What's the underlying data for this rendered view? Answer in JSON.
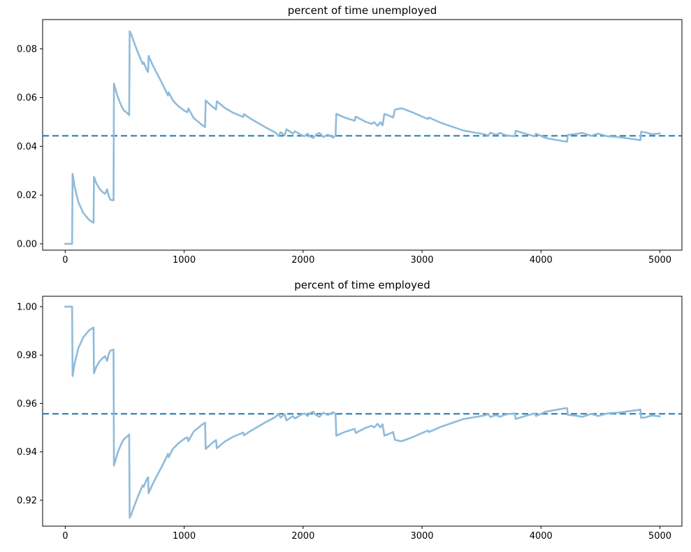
{
  "figure": {
    "background": "#ffffff",
    "series_color": "#8fbbda",
    "dashed_color": "#1f77b4",
    "axis_color": "#000000"
  },
  "chart_data": [
    {
      "type": "line",
      "title": "percent of time unemployed",
      "xlabel": "",
      "ylabel": "",
      "grid": false,
      "legend": "none",
      "xlim": [
        -190,
        5185
      ],
      "ylim": [
        -0.0026,
        0.092
      ],
      "xtick_values": [
        0,
        1000,
        2000,
        3000,
        4000,
        5000
      ],
      "xtick_labels": [
        "0",
        "1000",
        "2000",
        "3000",
        "4000",
        "5000"
      ],
      "ytick_values": [
        0.0,
        0.02,
        0.04,
        0.06,
        0.08
      ],
      "ytick_labels": [
        "0.00",
        "0.02",
        "0.04",
        "0.06",
        "0.08"
      ],
      "hline": {
        "value": 0.0443,
        "style": "dashed"
      },
      "series": [
        {
          "x": [
            0,
            58,
            62,
            80,
            110,
            150,
            200,
            238,
            242,
            262,
            285,
            312,
            335,
            352,
            366,
            380,
            406,
            410,
            440,
            470,
            492,
            520,
            538,
            542,
            556,
            585,
            615,
            645,
            652,
            660,
            686,
            697,
            701,
            735,
            770,
            810,
            858,
            864,
            870,
            905,
            950,
            1005,
            1028,
            1035,
            1080,
            1144,
            1176,
            1181,
            1230,
            1268,
            1274,
            1340,
            1410,
            1470,
            1497,
            1503,
            1560,
            1610,
            1684,
            1730,
            1770,
            1793,
            1810,
            1845,
            1860,
            1915,
            1932,
            1978,
            2010,
            2038,
            2055,
            2085,
            2108,
            2138,
            2170,
            2208,
            2252,
            2273,
            2279,
            2360,
            2433,
            2442,
            2520,
            2575,
            2598,
            2627,
            2650,
            2668,
            2684,
            2740,
            2757,
            2772,
            2800,
            2830,
            2917,
            3000,
            3050,
            3058,
            3150,
            3268,
            3345,
            3435,
            3520,
            3558,
            3574,
            3620,
            3658,
            3688,
            3720,
            3780,
            3788,
            3860,
            3948,
            3958,
            4040,
            4120,
            4190,
            4220,
            4226,
            4285,
            4350,
            4420,
            4480,
            4560,
            4650,
            4754,
            4800,
            4836,
            4842,
            4880,
            4930,
            5000
          ],
          "y": [
            0.0,
            0.0,
            0.0287,
            0.0232,
            0.0172,
            0.0128,
            0.0098,
            0.0086,
            0.0275,
            0.0248,
            0.0228,
            0.0213,
            0.0205,
            0.0224,
            0.0196,
            0.0181,
            0.0178,
            0.0657,
            0.0605,
            0.0568,
            0.0548,
            0.0537,
            0.0528,
            0.0872,
            0.0858,
            0.0818,
            0.078,
            0.0746,
            0.0738,
            0.0744,
            0.0713,
            0.0705,
            0.0771,
            0.0733,
            0.07,
            0.0663,
            0.0615,
            0.0608,
            0.0622,
            0.0588,
            0.0565,
            0.0545,
            0.054,
            0.0556,
            0.0516,
            0.049,
            0.0479,
            0.0588,
            0.0566,
            0.0551,
            0.0585,
            0.0558,
            0.0538,
            0.0526,
            0.052,
            0.0532,
            0.0513,
            0.0499,
            0.0478,
            0.0466,
            0.0455,
            0.0442,
            0.0458,
            0.0445,
            0.047,
            0.0452,
            0.0462,
            0.0448,
            0.0441,
            0.0452,
            0.0441,
            0.0434,
            0.0448,
            0.0455,
            0.0438,
            0.0448,
            0.0436,
            0.0444,
            0.0533,
            0.0516,
            0.0505,
            0.0522,
            0.0502,
            0.0492,
            0.0499,
            0.0484,
            0.0499,
            0.0486,
            0.0533,
            0.0522,
            0.0518,
            0.055,
            0.0554,
            0.0556,
            0.054,
            0.0522,
            0.0512,
            0.0518,
            0.0498,
            0.0478,
            0.0465,
            0.0457,
            0.045,
            0.0444,
            0.0456,
            0.0448,
            0.0455,
            0.0448,
            0.0444,
            0.0441,
            0.0464,
            0.0453,
            0.0441,
            0.0452,
            0.0434,
            0.0427,
            0.0421,
            0.0419,
            0.0447,
            0.045,
            0.0455,
            0.0443,
            0.0452,
            0.0441,
            0.0438,
            0.0431,
            0.0428,
            0.0425,
            0.046,
            0.0457,
            0.045,
            0.0453
          ]
        }
      ]
    },
    {
      "type": "line",
      "title": "percent of time employed",
      "xlabel": "",
      "ylabel": "",
      "grid": false,
      "legend": "none",
      "xlim": [
        -190,
        5185
      ],
      "ylim": [
        0.9093,
        1.0043
      ],
      "xtick_values": [
        0,
        1000,
        2000,
        3000,
        4000,
        5000
      ],
      "xtick_labels": [
        "0",
        "1000",
        "2000",
        "3000",
        "4000",
        "5000"
      ],
      "ytick_values": [
        0.92,
        0.94,
        0.96,
        0.98,
        1.0
      ],
      "ytick_labels": [
        "0.92",
        "0.94",
        "0.96",
        "0.98",
        "1.00"
      ],
      "hline": {
        "value": 0.9557,
        "style": "dashed"
      },
      "series": [
        {
          "x": [
            0,
            58,
            62,
            80,
            110,
            150,
            200,
            238,
            242,
            262,
            285,
            312,
            335,
            352,
            366,
            380,
            406,
            410,
            440,
            470,
            492,
            520,
            538,
            542,
            556,
            585,
            615,
            645,
            652,
            660,
            686,
            697,
            701,
            735,
            770,
            810,
            858,
            864,
            870,
            905,
            950,
            1005,
            1028,
            1035,
            1080,
            1144,
            1176,
            1181,
            1230,
            1268,
            1274,
            1340,
            1410,
            1470,
            1497,
            1503,
            1560,
            1610,
            1684,
            1730,
            1770,
            1793,
            1810,
            1845,
            1860,
            1915,
            1932,
            1978,
            2010,
            2038,
            2055,
            2085,
            2108,
            2138,
            2170,
            2208,
            2252,
            2273,
            2279,
            2360,
            2433,
            2442,
            2520,
            2575,
            2598,
            2627,
            2650,
            2668,
            2684,
            2740,
            2757,
            2772,
            2800,
            2830,
            2917,
            3000,
            3050,
            3058,
            3150,
            3268,
            3345,
            3435,
            3520,
            3558,
            3574,
            3620,
            3658,
            3688,
            3720,
            3780,
            3788,
            3860,
            3948,
            3958,
            4040,
            4120,
            4190,
            4220,
            4226,
            4285,
            4350,
            4420,
            4480,
            4560,
            4650,
            4754,
            4800,
            4836,
            4842,
            4880,
            4930,
            5000
          ],
          "y": [
            1.0,
            1.0,
            0.9713,
            0.9768,
            0.9828,
            0.9872,
            0.9902,
            0.9914,
            0.9725,
            0.9752,
            0.9772,
            0.9787,
            0.9795,
            0.9776,
            0.9804,
            0.9819,
            0.9822,
            0.9343,
            0.9395,
            0.9432,
            0.9452,
            0.9463,
            0.9472,
            0.9128,
            0.9142,
            0.9182,
            0.922,
            0.9254,
            0.9262,
            0.9256,
            0.9287,
            0.9295,
            0.9229,
            0.9267,
            0.93,
            0.9337,
            0.9385,
            0.9392,
            0.9378,
            0.9412,
            0.9435,
            0.9455,
            0.946,
            0.9444,
            0.9484,
            0.951,
            0.9521,
            0.9412,
            0.9434,
            0.9449,
            0.9415,
            0.9442,
            0.9462,
            0.9474,
            0.948,
            0.9468,
            0.9487,
            0.9501,
            0.9522,
            0.9534,
            0.9545,
            0.9558,
            0.9542,
            0.9555,
            0.953,
            0.9548,
            0.9538,
            0.9552,
            0.9559,
            0.9548,
            0.9559,
            0.9566,
            0.9552,
            0.9545,
            0.9562,
            0.9552,
            0.9564,
            0.9556,
            0.9467,
            0.9484,
            0.9495,
            0.9478,
            0.9498,
            0.9508,
            0.9501,
            0.9516,
            0.9501,
            0.9514,
            0.9467,
            0.9478,
            0.9482,
            0.945,
            0.9446,
            0.9444,
            0.946,
            0.9478,
            0.9488,
            0.9482,
            0.9502,
            0.9522,
            0.9535,
            0.9543,
            0.955,
            0.9556,
            0.9544,
            0.9552,
            0.9545,
            0.9552,
            0.9556,
            0.9559,
            0.9536,
            0.9547,
            0.9559,
            0.9548,
            0.9566,
            0.9573,
            0.9579,
            0.9581,
            0.9553,
            0.955,
            0.9545,
            0.9557,
            0.9548,
            0.9559,
            0.9562,
            0.9569,
            0.9572,
            0.9575,
            0.954,
            0.9543,
            0.955,
            0.9547
          ]
        }
      ]
    }
  ]
}
